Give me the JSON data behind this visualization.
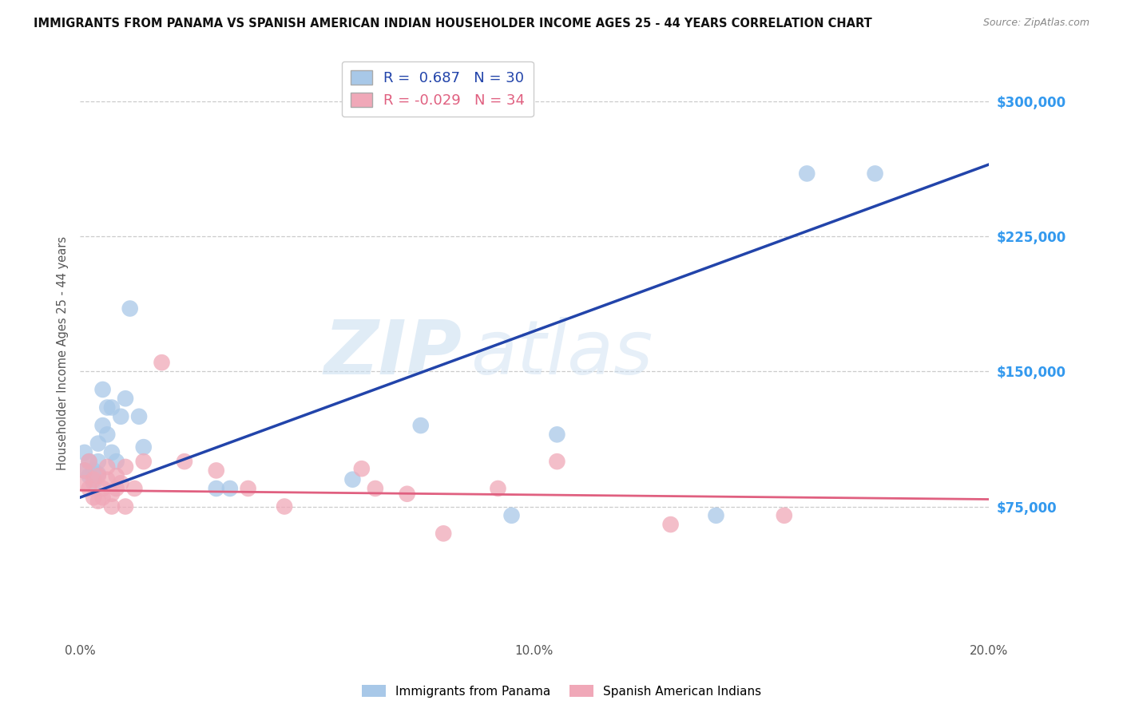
{
  "title": "IMMIGRANTS FROM PANAMA VS SPANISH AMERICAN INDIAN HOUSEHOLDER INCOME AGES 25 - 44 YEARS CORRELATION CHART",
  "source": "Source: ZipAtlas.com",
  "ylabel": "Householder Income Ages 25 - 44 years",
  "xlim": [
    0.0,
    0.2
  ],
  "ylim": [
    0,
    320000
  ],
  "xticks": [
    0.0,
    0.05,
    0.1,
    0.15,
    0.2
  ],
  "xticklabels": [
    "0.0%",
    "",
    "10.0%",
    "",
    "20.0%"
  ],
  "yticks_right": [
    75000,
    150000,
    225000,
    300000
  ],
  "ytick_labels_right": [
    "$75,000",
    "$150,000",
    "$225,000",
    "$300,000"
  ],
  "grid_color": "#cccccc",
  "background_color": "#ffffff",
  "watermark_zip": "ZIP",
  "watermark_atlas": "atlas",
  "legend_labels": [
    "Immigrants from Panama",
    "Spanish American Indians"
  ],
  "r1": 0.687,
  "n1": 30,
  "r2": -0.029,
  "n2": 34,
  "color_blue": "#a8c8e8",
  "color_pink": "#f0a8b8",
  "line_blue": "#2244aa",
  "line_pink": "#e06080",
  "panama_x": [
    0.001,
    0.001,
    0.002,
    0.002,
    0.003,
    0.003,
    0.004,
    0.004,
    0.004,
    0.005,
    0.005,
    0.006,
    0.006,
    0.007,
    0.007,
    0.008,
    0.009,
    0.01,
    0.011,
    0.013,
    0.014,
    0.03,
    0.033,
    0.06,
    0.075,
    0.095,
    0.105,
    0.14,
    0.16,
    0.175
  ],
  "panama_y": [
    95000,
    105000,
    92000,
    100000,
    88000,
    95000,
    100000,
    93000,
    110000,
    140000,
    120000,
    130000,
    115000,
    105000,
    130000,
    100000,
    125000,
    135000,
    185000,
    125000,
    108000,
    85000,
    85000,
    90000,
    120000,
    70000,
    115000,
    70000,
    260000,
    260000
  ],
  "spanish_x": [
    0.001,
    0.001,
    0.002,
    0.002,
    0.003,
    0.003,
    0.004,
    0.004,
    0.005,
    0.005,
    0.006,
    0.006,
    0.007,
    0.007,
    0.008,
    0.008,
    0.009,
    0.01,
    0.01,
    0.012,
    0.014,
    0.018,
    0.023,
    0.03,
    0.037,
    0.045,
    0.062,
    0.065,
    0.072,
    0.08,
    0.092,
    0.105,
    0.13,
    0.155
  ],
  "spanish_y": [
    88000,
    95000,
    85000,
    100000,
    80000,
    90000,
    78000,
    92000,
    80000,
    85000,
    90000,
    97000,
    82000,
    75000,
    92000,
    85000,
    88000,
    75000,
    97000,
    85000,
    100000,
    155000,
    100000,
    95000,
    85000,
    75000,
    96000,
    85000,
    82000,
    60000,
    85000,
    100000,
    65000,
    70000
  ]
}
